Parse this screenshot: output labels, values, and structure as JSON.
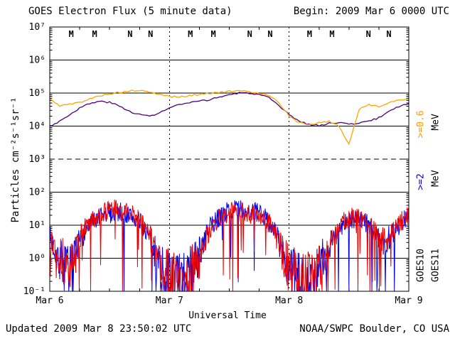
{
  "header": {
    "title": "GOES Electron Flux (5 minute data)",
    "begin_label": "Begin: 2009 Mar 6 0000 UTC"
  },
  "footer": {
    "updated": "Updated 2009 Mar 8 23:50:02 UTC",
    "credit": "NOAA/SWPC Boulder, CO USA"
  },
  "axes": {
    "y_label": "Particles cm⁻²s⁻¹sr⁻¹",
    "x_label": "Universal Time"
  },
  "legend": {
    "energy_ge2": {
      "label": ">=2",
      "color": "#0000cc"
    },
    "energy_ge06": {
      "label": ">=0.6",
      "color": "#ff9900"
    },
    "unit1": "MeV",
    "unit2": "MeV",
    "goes10": {
      "label": "GOES10",
      "color": "#000000"
    },
    "goes11": {
      "label": "GOES11",
      "color": "#000000"
    }
  },
  "chart_data": {
    "type": "line",
    "title": "GOES Electron Flux (5 minute data)",
    "x_unit": "hours since 2009 Mar 6 0000 UTC",
    "x_range": [
      0,
      72
    ],
    "y_scale": "log10",
    "y_range_log": [
      -1,
      7
    ],
    "grid": "horizontal solid each decade, threshold dashed, day boundaries dashed vertical",
    "threshold_log": 3,
    "day_boundaries_dashed": [
      24,
      48
    ],
    "x_ticks": [
      {
        "t": 0,
        "label": "Mar 6"
      },
      {
        "t": 24,
        "label": "Mar 7"
      },
      {
        "t": 48,
        "label": "Mar 8"
      },
      {
        "t": 72,
        "label": "Mar 9"
      }
    ],
    "y_ticks": [
      {
        "log": 7,
        "label": "10⁷"
      },
      {
        "log": 6,
        "label": "10⁶"
      },
      {
        "log": 5,
        "label": "10⁵"
      },
      {
        "log": 4,
        "label": "10⁴"
      },
      {
        "log": 3,
        "label": "10³"
      },
      {
        "log": 2,
        "label": "10²"
      },
      {
        "log": 1,
        "label": "10¹"
      },
      {
        "log": 0,
        "label": "10⁰"
      },
      {
        "log": -1,
        "label": "10⁻¹"
      }
    ],
    "marker_colors": {
      "GOES10": "#0000cc",
      "GOES11": "#cc0000"
    },
    "midnight_noon_markers": [
      {
        "t": 4.3,
        "letter": "M",
        "sat": "GOES10"
      },
      {
        "t": 9.0,
        "letter": "M",
        "sat": "GOES11"
      },
      {
        "t": 16.1,
        "letter": "N",
        "sat": "GOES10"
      },
      {
        "t": 20.2,
        "letter": "N",
        "sat": "GOES11"
      },
      {
        "t": 28.2,
        "letter": "M",
        "sat": "GOES10"
      },
      {
        "t": 32.8,
        "letter": "M",
        "sat": "GOES11"
      },
      {
        "t": 40.1,
        "letter": "N",
        "sat": "GOES10"
      },
      {
        "t": 44.2,
        "letter": "N",
        "sat": "GOES11"
      },
      {
        "t": 52.1,
        "letter": "M",
        "sat": "GOES10"
      },
      {
        "t": 56.6,
        "letter": "M",
        "sat": "GOES11"
      },
      {
        "t": 63.9,
        "letter": "N",
        "sat": "GOES10"
      },
      {
        "t": 68.0,
        "letter": "N",
        "sat": "GOES11"
      }
    ],
    "series": [
      {
        "name": "GOES10 >=0.6 MeV",
        "color": "#4b0082",
        "style": "smooth",
        "step_h": 2,
        "seed": 3,
        "log10_flux": [
          4.0,
          4.15,
          4.35,
          4.55,
          4.68,
          4.75,
          4.72,
          4.6,
          4.45,
          4.35,
          4.3,
          4.4,
          4.55,
          4.65,
          4.7,
          4.75,
          4.8,
          4.88,
          4.95,
          5.0,
          5.0,
          4.95,
          4.85,
          4.6,
          4.35,
          4.15,
          4.05,
          4.02,
          4.08,
          4.12,
          4.05,
          4.1,
          4.15,
          4.25,
          4.45,
          4.6,
          4.68
        ]
      },
      {
        "name": "GOES11 >=0.6 MeV",
        "color": "#ffa500",
        "style": "smooth",
        "step_h": 2,
        "seed": 5,
        "log10_flux": [
          4.82,
          4.62,
          4.66,
          4.72,
          4.82,
          4.92,
          4.98,
          5.02,
          5.06,
          5.08,
          5.02,
          4.96,
          4.9,
          4.88,
          4.92,
          4.96,
          5.0,
          5.02,
          5.05,
          5.06,
          5.04,
          5.0,
          4.94,
          4.7,
          4.3,
          4.1,
          4.05,
          4.1,
          4.15,
          4.0,
          3.45,
          4.5,
          4.65,
          4.6,
          4.7,
          4.78,
          4.85
        ]
      },
      {
        "name": "GOES10 >=2 MeV",
        "color": "#0000ee",
        "style": "noisy",
        "step_h": 1,
        "seed": 7,
        "log10_flux": [
          0.6,
          0.3,
          0.0,
          -0.3,
          -0.5,
          -0.2,
          0.5,
          0.8,
          1.0,
          1.1,
          1.2,
          1.3,
          1.35,
          1.4,
          1.4,
          1.35,
          1.3,
          1.2,
          1.1,
          0.9,
          0.6,
          0.2,
          -0.2,
          -0.5,
          -0.7,
          -0.8,
          -0.8,
          -0.7,
          -0.5,
          -0.2,
          0.1,
          0.5,
          0.9,
          1.1,
          1.25,
          1.35,
          1.45,
          1.5,
          1.5,
          1.45,
          1.45,
          1.4,
          1.35,
          1.25,
          1.1,
          0.9,
          0.5,
          0.0,
          -0.4,
          -0.7,
          -0.85,
          -0.9,
          -0.8,
          -0.6,
          -0.3,
          0.0,
          0.4,
          0.7,
          0.9,
          1.05,
          1.15,
          1.2,
          1.2,
          1.1,
          1.0,
          0.8,
          0.6,
          0.5,
          0.6,
          0.8,
          1.0,
          1.15,
          1.25
        ]
      },
      {
        "name": "GOES11 >=2 MeV",
        "color": "#ee0000",
        "style": "noisy",
        "step_h": 1,
        "seed": 13,
        "log10_flux": [
          0.5,
          0.4,
          0.1,
          -0.2,
          -0.3,
          0.0,
          0.6,
          0.9,
          1.1,
          1.2,
          1.3,
          1.4,
          1.45,
          1.5,
          1.45,
          1.4,
          1.35,
          1.3,
          1.15,
          0.95,
          0.7,
          0.3,
          0.0,
          -0.3,
          -0.6,
          -0.75,
          -0.8,
          -0.75,
          -0.6,
          -0.3,
          0.0,
          0.4,
          0.8,
          1.0,
          1.2,
          1.3,
          1.4,
          1.45,
          1.4,
          1.4,
          1.35,
          1.3,
          1.3,
          1.2,
          1.05,
          0.85,
          0.45,
          0.05,
          -0.3,
          -0.6,
          -0.8,
          -0.85,
          -0.75,
          -0.55,
          -0.25,
          0.05,
          0.45,
          0.75,
          0.95,
          1.1,
          1.2,
          1.25,
          1.2,
          1.15,
          1.0,
          0.85,
          0.65,
          0.55,
          0.65,
          0.85,
          1.05,
          1.2,
          1.3
        ]
      }
    ]
  }
}
